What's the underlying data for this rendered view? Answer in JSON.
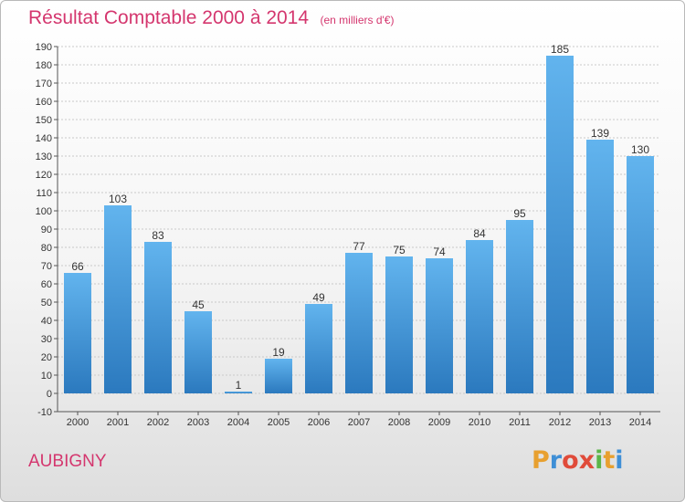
{
  "header": {
    "title": "Résultat Comptable 2000 à 2014",
    "subtitle": "(en milliers d'€)"
  },
  "footer": {
    "commune": "AUBIGNY",
    "logo_letters": [
      "P",
      "r",
      "o",
      "x",
      "i",
      "t",
      "i"
    ],
    "logo_colors": [
      "#e8a02f",
      "#3f8fd6",
      "#e04b3a",
      "#e04b3a",
      "#5bb548",
      "#e8a02f",
      "#3f8fd6"
    ]
  },
  "colors": {
    "bar_top": "#62b4ee",
    "bar_bottom": "#2b79be",
    "axis": "#555555",
    "grid": "#c9c9c9"
  },
  "chart_data": {
    "type": "bar",
    "title": "Résultat Comptable 2000 à 2014",
    "subtitle": "(en milliers d'€)",
    "categories": [
      "2000",
      "2001",
      "2002",
      "2003",
      "2004",
      "2005",
      "2006",
      "2007",
      "2008",
      "2009",
      "2010",
      "2011",
      "2012",
      "2013",
      "2014"
    ],
    "values": [
      66,
      103,
      83,
      45,
      1,
      19,
      49,
      77,
      75,
      74,
      84,
      95,
      185,
      139,
      130
    ],
    "ylim": [
      -10,
      190
    ],
    "yticks": [
      -10,
      0,
      10,
      20,
      30,
      40,
      50,
      60,
      70,
      80,
      90,
      100,
      110,
      120,
      130,
      140,
      150,
      160,
      170,
      180,
      190
    ],
    "grid": true,
    "data_labels": true
  }
}
